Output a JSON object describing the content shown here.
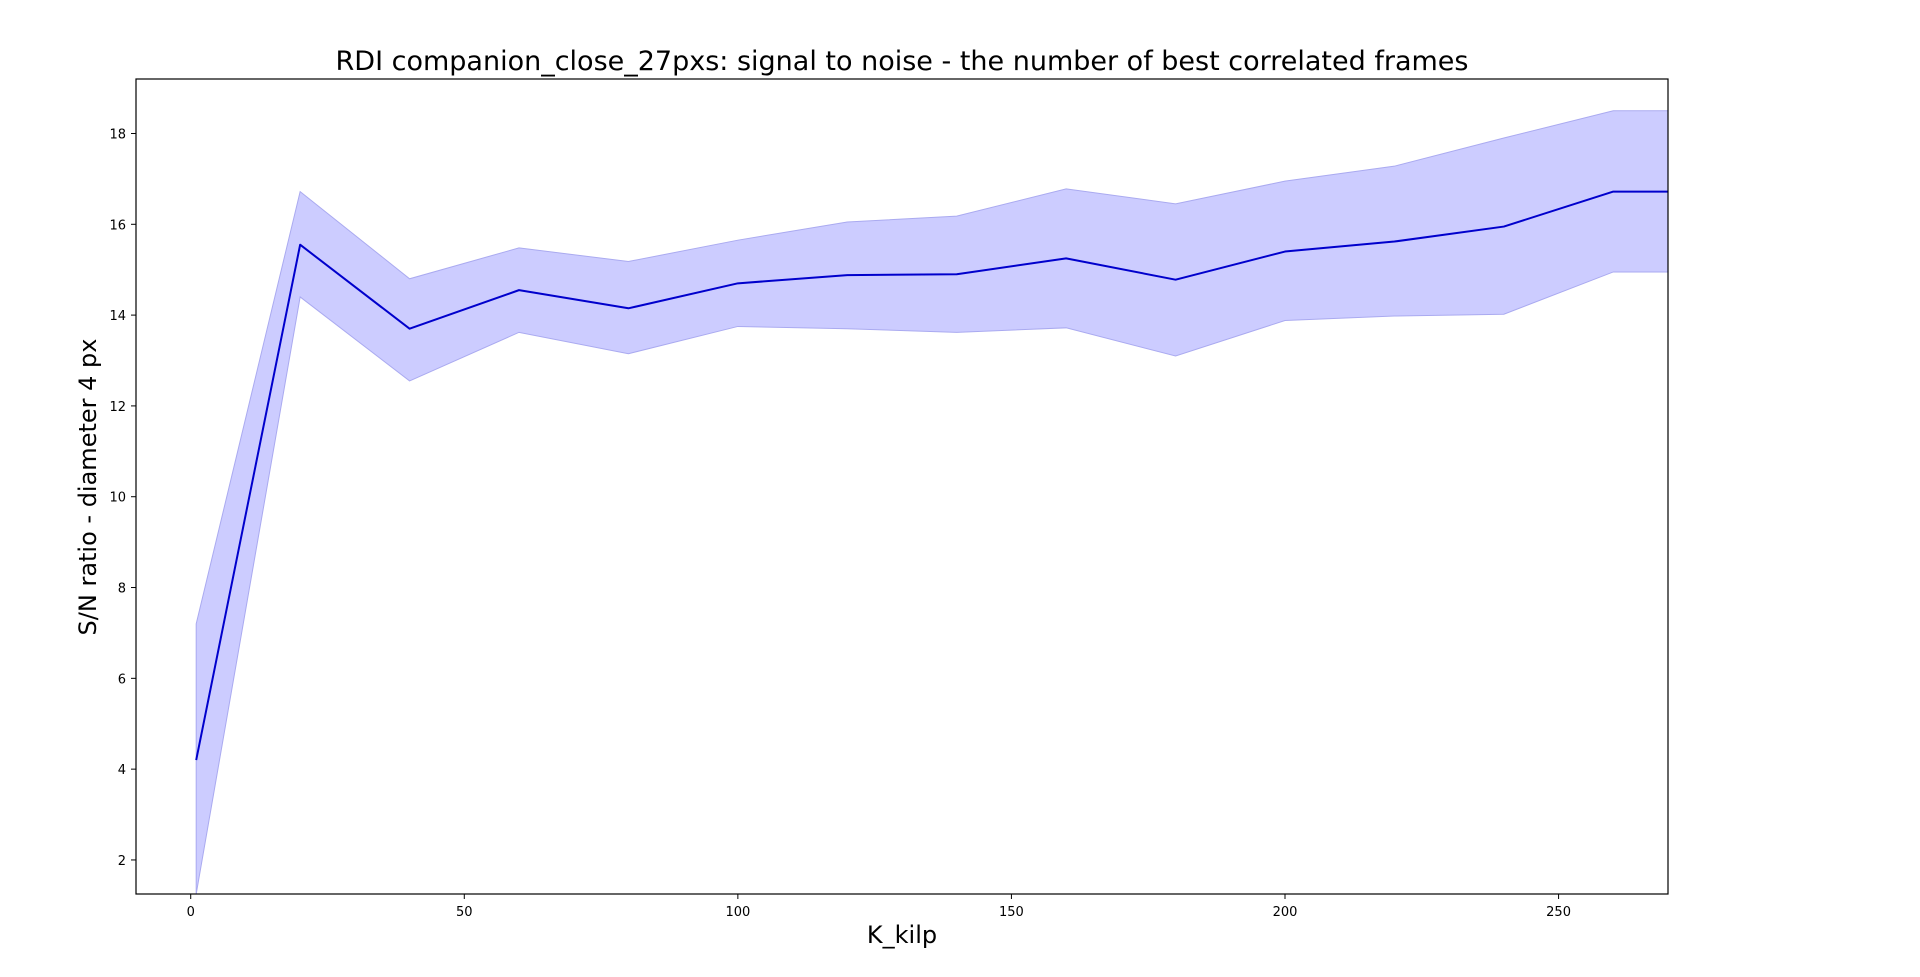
{
  "chart_data": {
    "type": "line",
    "title": "RDI companion_close_27pxs: signal to noise - the number of best correlated frames",
    "xlabel": "K_kilp",
    "ylabel": "S/N ratio - diameter 4 px",
    "xlim": [
      -10,
      270
    ],
    "ylim": [
      1.25,
      19.2
    ],
    "xticks": [
      0,
      50,
      100,
      150,
      200,
      250
    ],
    "yticks": [
      2,
      4,
      6,
      8,
      10,
      12,
      14,
      16,
      18
    ],
    "grid": false,
    "series": [
      {
        "x": [
          1,
          20,
          40,
          60,
          80,
          100,
          120,
          140,
          160,
          180,
          200,
          220,
          240,
          260,
          270
        ],
        "y": [
          4.2,
          15.55,
          13.7,
          14.55,
          14.15,
          14.7,
          14.88,
          14.9,
          15.25,
          14.78,
          15.4,
          15.62,
          15.95,
          16.72,
          16.72
        ],
        "lower": [
          1.25,
          14.4,
          12.55,
          13.62,
          13.15,
          13.75,
          13.7,
          13.62,
          13.72,
          13.1,
          13.88,
          13.98,
          14.02,
          14.95,
          14.95
        ],
        "upper": [
          7.2,
          16.72,
          14.8,
          15.48,
          15.18,
          15.65,
          16.05,
          16.18,
          16.78,
          16.45,
          16.95,
          17.28,
          17.9,
          18.5,
          18.5
        ],
        "color": "#0000cc",
        "band_color": "#ccccff",
        "band_edge_color": "#aaaaf0"
      }
    ]
  }
}
